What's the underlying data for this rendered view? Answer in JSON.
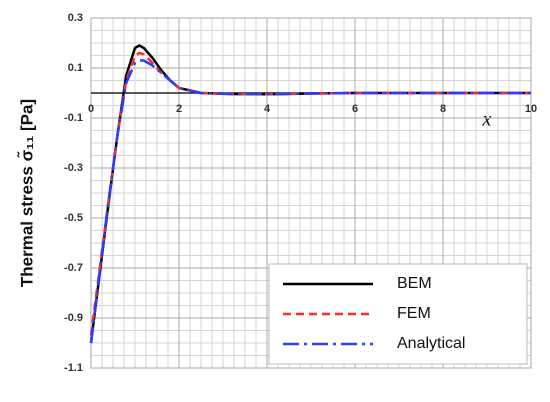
{
  "chart_data": {
    "type": "line",
    "x_label": "x",
    "y_label": "Thermal stress σ̃₁₁ [Pa]",
    "x": [
      0,
      0.2,
      0.4,
      0.6,
      0.8,
      1.0,
      1.1,
      1.2,
      1.4,
      1.6,
      1.8,
      2.0,
      2.5,
      3,
      3.5,
      4,
      5,
      6,
      7,
      8,
      9,
      10
    ],
    "series": [
      {
        "name": "BEM",
        "color": "#000000",
        "dash": "solid",
        "values": [
          -1.0,
          -0.72,
          -0.44,
          -0.17,
          0.07,
          0.18,
          0.19,
          0.18,
          0.14,
          0.09,
          0.05,
          0.02,
          0.0,
          -0.003,
          -0.005,
          -0.005,
          -0.002,
          0,
          0,
          0,
          0,
          0
        ]
      },
      {
        "name": "FEM",
        "color": "#ff2a2a",
        "dash": "dashed",
        "values": [
          -0.97,
          -0.7,
          -0.43,
          -0.17,
          0.05,
          0.15,
          0.16,
          0.155,
          0.12,
          0.08,
          0.05,
          0.02,
          0.0,
          -0.003,
          -0.005,
          -0.005,
          -0.002,
          0,
          0,
          0,
          0,
          0
        ]
      },
      {
        "name": "Analytical",
        "color": "#2a3cff",
        "dash": "dashdot",
        "values": [
          -1.0,
          -0.71,
          -0.43,
          -0.17,
          0.04,
          0.12,
          0.13,
          0.13,
          0.11,
          0.08,
          0.05,
          0.02,
          0.0,
          -0.003,
          -0.005,
          -0.005,
          -0.002,
          0,
          0,
          0,
          0,
          0
        ]
      }
    ],
    "xlim": [
      0,
      10
    ],
    "xticks": [
      0,
      2,
      4,
      6,
      8,
      10
    ],
    "ylim": [
      -1.1,
      0.3
    ],
    "yticks": [
      0.3,
      0.1,
      -0.1,
      -0.3,
      -0.5,
      -0.7,
      -0.9,
      -1.1
    ],
    "grid": true,
    "legend": "lower right"
  }
}
